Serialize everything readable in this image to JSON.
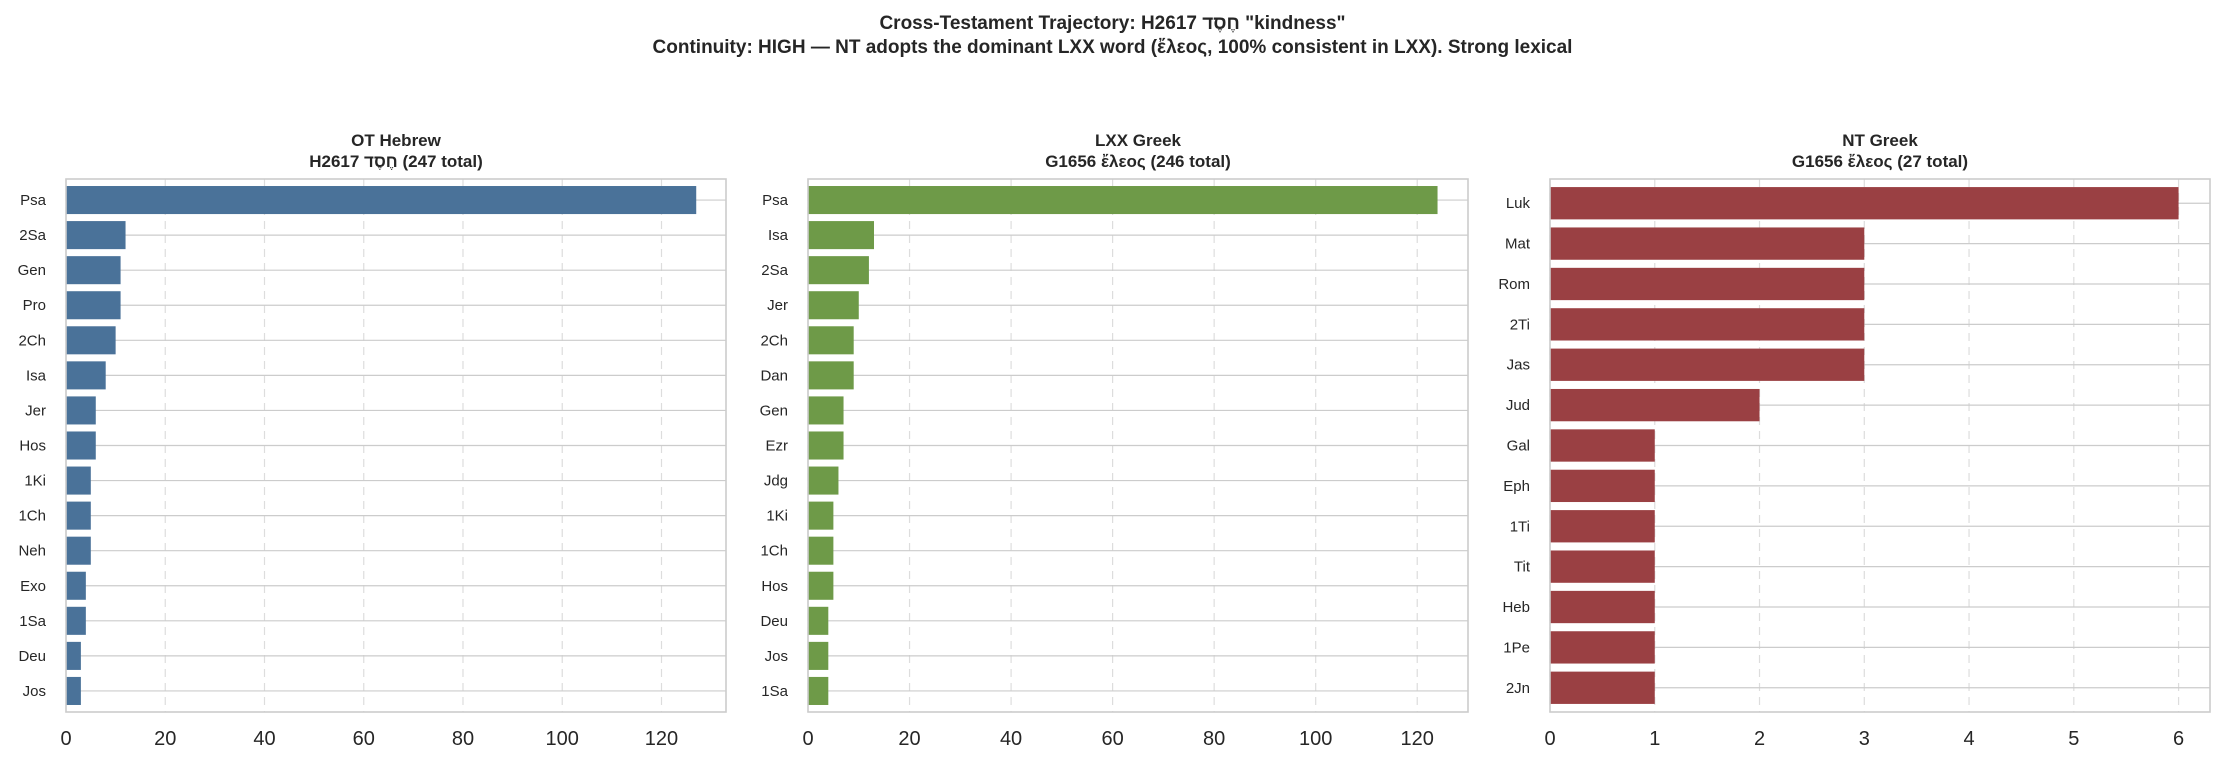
{
  "figure": {
    "title_line1": "Cross-Testament Trajectory: H2617 חֶסֶד \"kindness\"",
    "title_line2": "Continuity: HIGH — NT adopts the dominant LXX word (ἔλεος, 100% consistent in LXX). Strong lexical"
  },
  "chart_data": [
    {
      "type": "bar",
      "orientation": "horizontal",
      "title": "OT Hebrew",
      "subtitle": "H2617 חֶסֶד (247 total)",
      "color": "#4a7299",
      "categories": [
        "Psa",
        "2Sa",
        "Gen",
        "Pro",
        "2Ch",
        "Isa",
        "Jer",
        "Hos",
        "1Ki",
        "1Ch",
        "Neh",
        "Exo",
        "1Sa",
        "Deu",
        "Jos"
      ],
      "values": [
        127,
        12,
        11,
        11,
        10,
        8,
        6,
        6,
        5,
        5,
        5,
        4,
        4,
        3,
        3
      ],
      "xlim": [
        0,
        133
      ],
      "xticks": [
        0,
        20,
        40,
        60,
        80,
        100,
        120
      ],
      "grid": true
    },
    {
      "type": "bar",
      "orientation": "horizontal",
      "title": "LXX Greek",
      "subtitle": "G1656 ἔλεος (246 total)",
      "color": "#6e9a48",
      "categories": [
        "Psa",
        "Isa",
        "2Sa",
        "Jer",
        "2Ch",
        "Dan",
        "Gen",
        "Ezr",
        "Jdg",
        "1Ki",
        "1Ch",
        "Hos",
        "Deu",
        "Jos",
        "1Sa"
      ],
      "values": [
        124,
        13,
        12,
        10,
        9,
        9,
        7,
        7,
        6,
        5,
        5,
        5,
        4,
        4,
        4
      ],
      "xlim": [
        0,
        130
      ],
      "xticks": [
        0,
        20,
        40,
        60,
        80,
        100,
        120
      ],
      "grid": true
    },
    {
      "type": "bar",
      "orientation": "horizontal",
      "title": "NT Greek",
      "subtitle": "G1656 ἔλεος (27 total)",
      "color": "#9a4043",
      "categories": [
        "Luk",
        "Mat",
        "Rom",
        "2Ti",
        "Jas",
        "Jud",
        "Gal",
        "Eph",
        "1Ti",
        "Tit",
        "Heb",
        "1Pe",
        "2Jn"
      ],
      "values": [
        6,
        3,
        3,
        3,
        3,
        2,
        1,
        1,
        1,
        1,
        1,
        1,
        1
      ],
      "xlim": [
        0,
        6.3
      ],
      "xticks": [
        0,
        1,
        2,
        3,
        4,
        5,
        6
      ],
      "grid": true
    }
  ]
}
